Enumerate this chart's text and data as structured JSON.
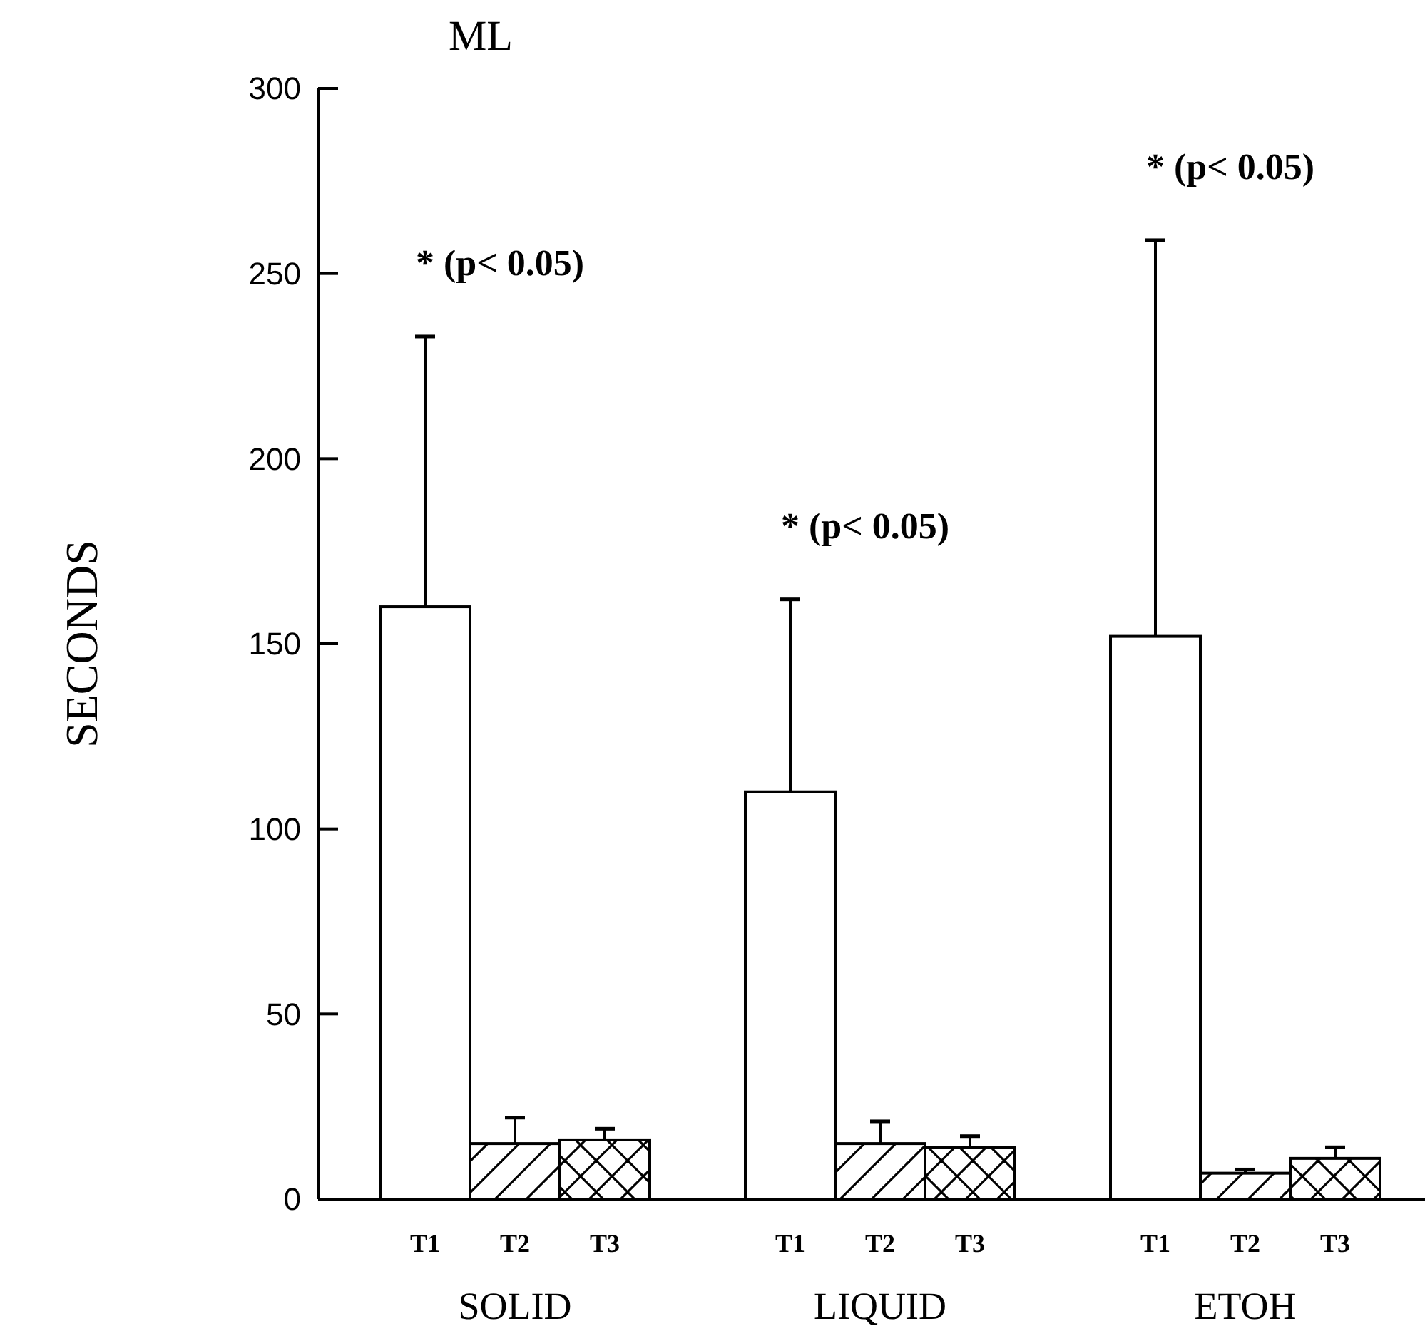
{
  "chart_data": {
    "type": "bar",
    "title": "ML",
    "ylabel": "SECONDS",
    "categories": [
      "SOLID",
      "LIQUID",
      "ETOH"
    ],
    "series": [
      {
        "name": "T1",
        "color": "#ffffff",
        "values": [
          160,
          110,
          152
        ],
        "errors": [
          [
            160,
            233
          ],
          [
            110,
            162
          ],
          [
            152,
            259
          ]
        ]
      },
      {
        "name": "T2",
        "color": "#ffffff",
        "values": [
          15,
          15,
          7
        ],
        "errors": [
          [
            15,
            22
          ],
          [
            15,
            21
          ],
          [
            7,
            8
          ]
        ]
      },
      {
        "name": "T3",
        "color": "#ffffff",
        "values": [
          16,
          14,
          11
        ],
        "errors": [
          [
            16,
            19
          ],
          [
            14,
            17
          ],
          [
            11,
            14
          ]
        ]
      }
    ],
    "ylim": [
      0,
      300
    ],
    "yticks": [
      0,
      50,
      100,
      150,
      200,
      250,
      300
    ],
    "grid": false,
    "annotations": [
      "* (p< 0.05)",
      "* (p< 0.05)",
      "* (p< 0.05)"
    ]
  }
}
